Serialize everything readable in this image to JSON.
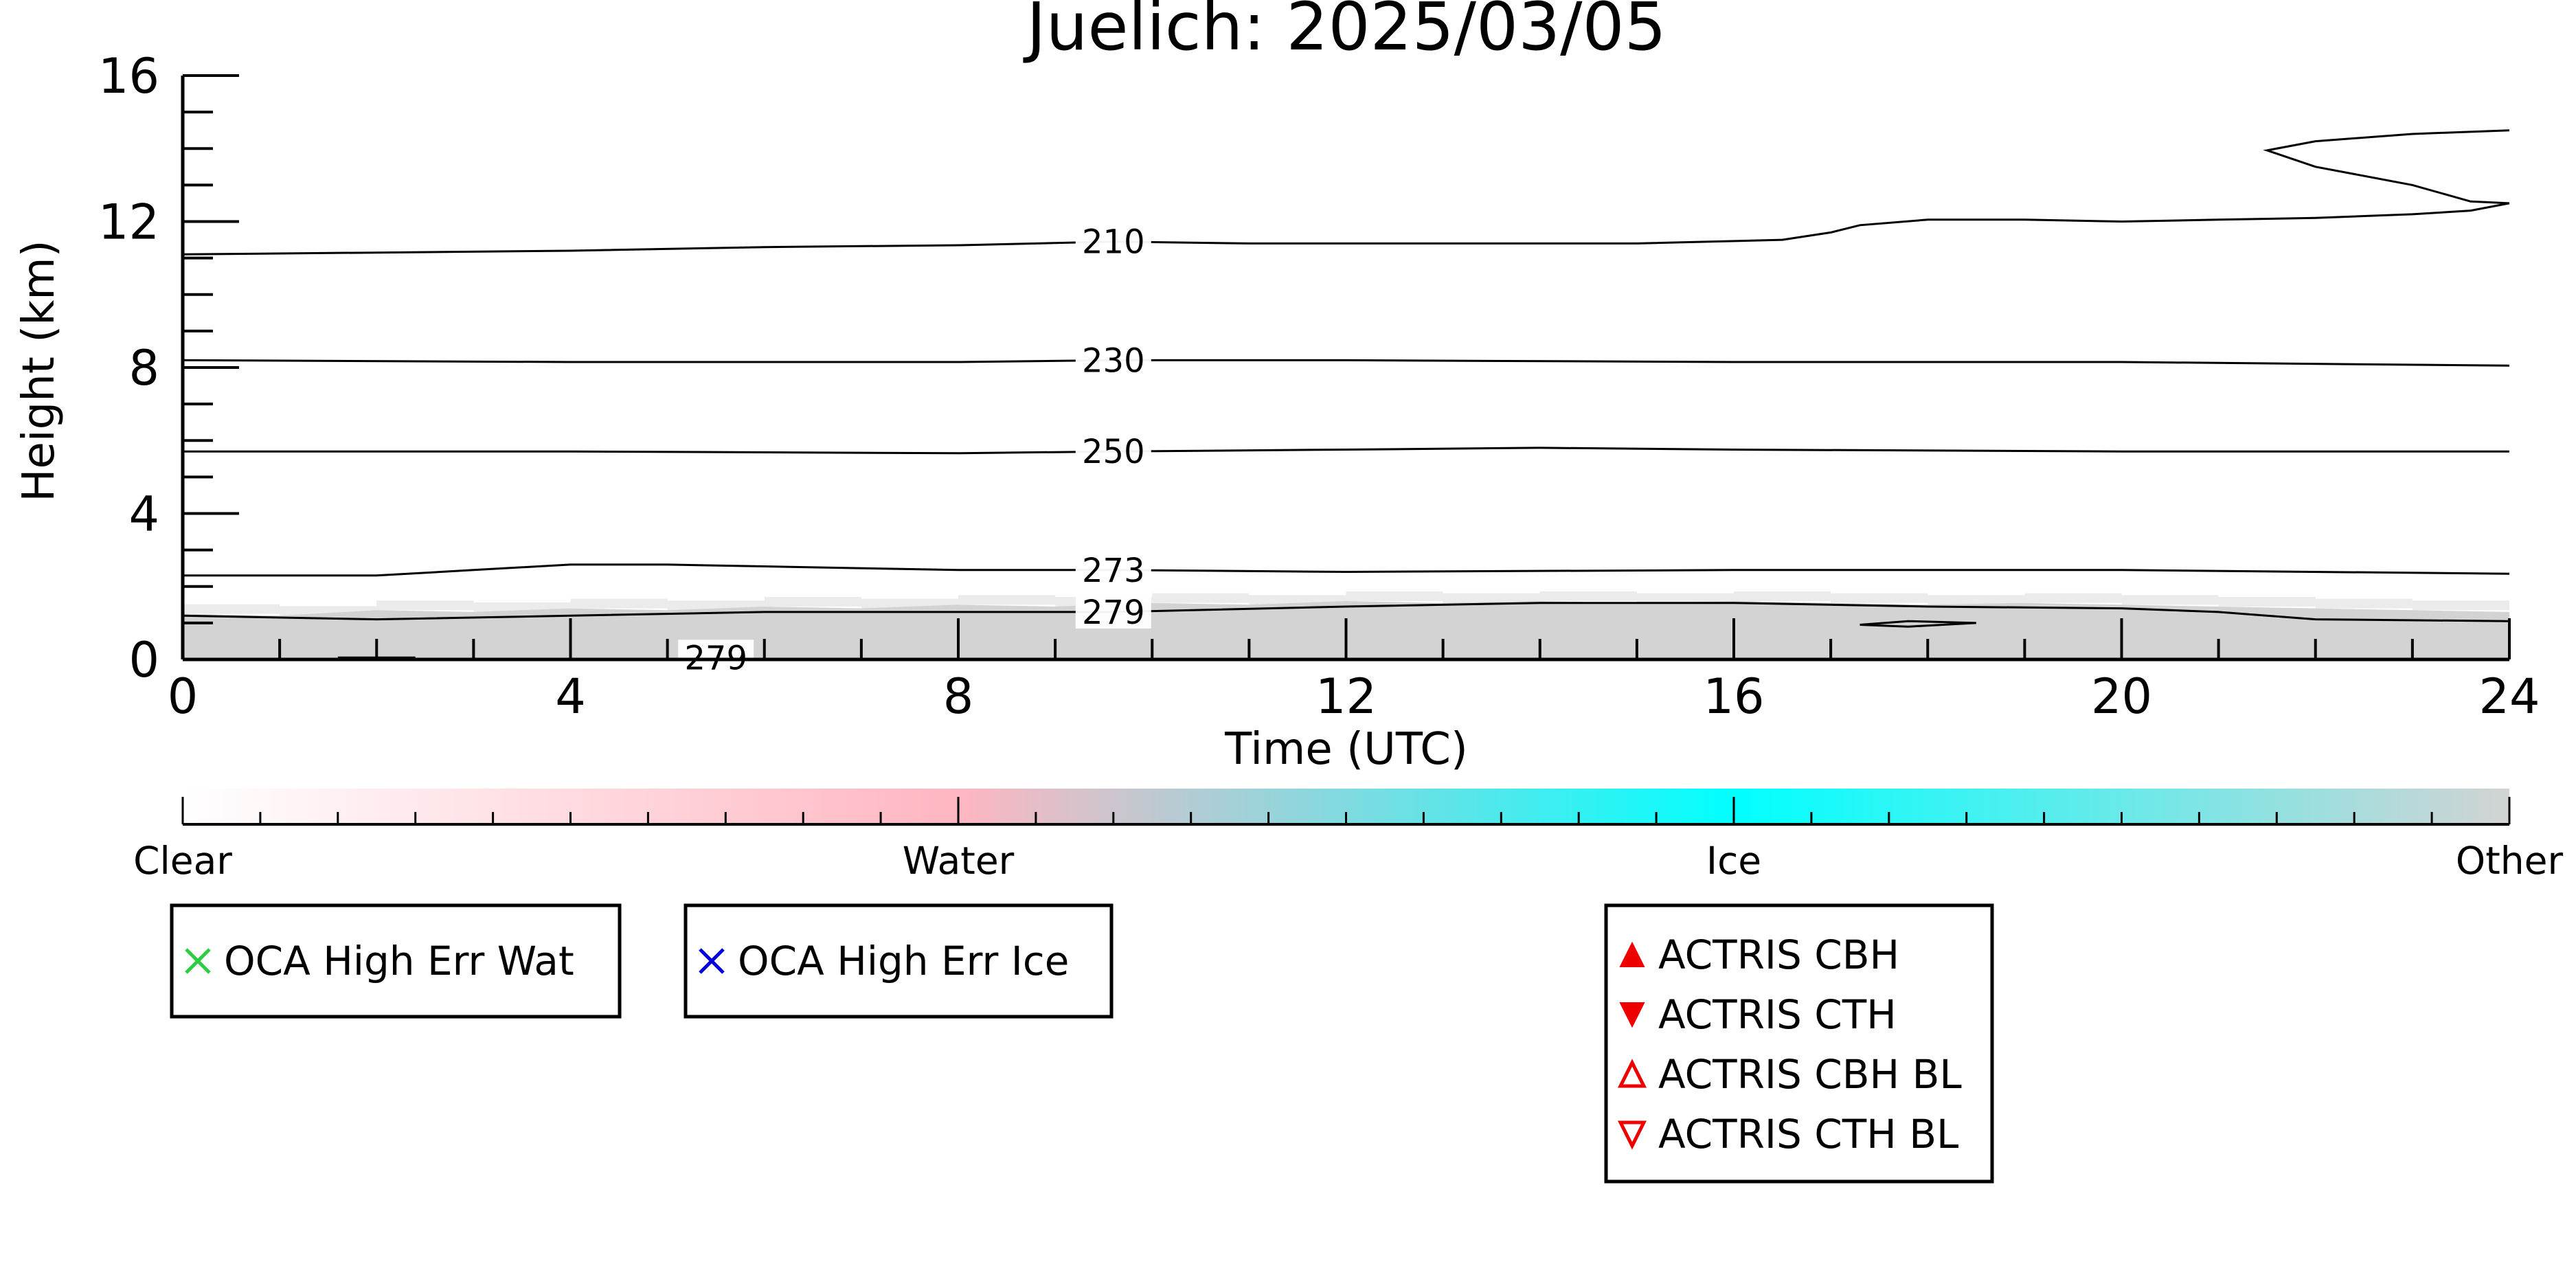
{
  "chart_data": {
    "type": "heatmap",
    "title": "Juelich: 2025/03/05",
    "xlabel": "Time (UTC)",
    "ylabel": "Height (km)",
    "xlim": [
      0,
      24
    ],
    "ylim": [
      0,
      16
    ],
    "x_ticks": [
      0,
      4,
      8,
      12,
      16,
      20,
      24
    ],
    "y_ticks": [
      0,
      4,
      8,
      12,
      16
    ],
    "cloud_layer": {
      "category": "Other",
      "color": "#d3d3d3",
      "top": [
        [
          0,
          1.25
        ],
        [
          1,
          1.2
        ],
        [
          2,
          1.35
        ],
        [
          3,
          1.3
        ],
        [
          4,
          1.4
        ],
        [
          5,
          1.35
        ],
        [
          6,
          1.45
        ],
        [
          7,
          1.4
        ],
        [
          8,
          1.5
        ],
        [
          9,
          1.45
        ],
        [
          10,
          1.55
        ],
        [
          11,
          1.5
        ],
        [
          12,
          1.6
        ],
        [
          13,
          1.55
        ],
        [
          14,
          1.6
        ],
        [
          15,
          1.55
        ],
        [
          16,
          1.6
        ],
        [
          17,
          1.55
        ],
        [
          18,
          1.5
        ],
        [
          19,
          1.55
        ],
        [
          20,
          1.5
        ],
        [
          21,
          1.45
        ],
        [
          22,
          1.4
        ],
        [
          23,
          1.35
        ],
        [
          24,
          1.3
        ]
      ]
    },
    "contours": [
      {
        "label": "210",
        "label_x": 9.6,
        "points": [
          [
            0,
            11.1
          ],
          [
            2,
            11.15
          ],
          [
            4,
            11.2
          ],
          [
            6,
            11.3
          ],
          [
            8,
            11.35
          ],
          [
            9.6,
            11.45
          ],
          [
            11,
            11.4
          ],
          [
            13,
            11.4
          ],
          [
            15,
            11.4
          ],
          [
            16.5,
            11.5
          ],
          [
            17,
            11.7
          ],
          [
            17.3,
            11.9
          ],
          [
            18,
            12.05
          ],
          [
            19,
            12.05
          ],
          [
            20,
            12.0
          ],
          [
            21,
            12.05
          ],
          [
            22,
            12.1
          ],
          [
            23,
            12.2
          ],
          [
            23.6,
            12.3
          ],
          [
            24,
            12.5
          ]
        ]
      },
      {
        "label": "210",
        "label_x": null,
        "points": [
          [
            24,
            14.5
          ],
          [
            23,
            14.4
          ],
          [
            22,
            14.2
          ],
          [
            21.5,
            13.95
          ],
          [
            22,
            13.5
          ],
          [
            23,
            13.0
          ],
          [
            23.6,
            12.55
          ],
          [
            24,
            12.5
          ]
        ]
      },
      {
        "label": "230",
        "label_x": 9.6,
        "points": [
          [
            0,
            8.2
          ],
          [
            4,
            8.15
          ],
          [
            8,
            8.15
          ],
          [
            9.6,
            8.2
          ],
          [
            12,
            8.2
          ],
          [
            16,
            8.15
          ],
          [
            20,
            8.15
          ],
          [
            24,
            8.05
          ]
        ]
      },
      {
        "label": "250",
        "label_x": 9.6,
        "points": [
          [
            0,
            5.7
          ],
          [
            4,
            5.7
          ],
          [
            8,
            5.65
          ],
          [
            9.6,
            5.7
          ],
          [
            12,
            5.75
          ],
          [
            14,
            5.8
          ],
          [
            16,
            5.75
          ],
          [
            20,
            5.7
          ],
          [
            24,
            5.7
          ]
        ]
      },
      {
        "label": "273",
        "label_x": 9.6,
        "points": [
          [
            0,
            2.3
          ],
          [
            2,
            2.3
          ],
          [
            3,
            2.45
          ],
          [
            4,
            2.6
          ],
          [
            5,
            2.6
          ],
          [
            6,
            2.55
          ],
          [
            8,
            2.45
          ],
          [
            9.6,
            2.45
          ],
          [
            12,
            2.4
          ],
          [
            16,
            2.45
          ],
          [
            20,
            2.45
          ],
          [
            24,
            2.35
          ]
        ]
      },
      {
        "label": "279",
        "label_x": 9.6,
        "points": [
          [
            0,
            1.2
          ],
          [
            2,
            1.1
          ],
          [
            4,
            1.2
          ],
          [
            6,
            1.3
          ],
          [
            8,
            1.3
          ],
          [
            9.6,
            1.3
          ],
          [
            12,
            1.45
          ],
          [
            14,
            1.55
          ],
          [
            16,
            1.55
          ],
          [
            18,
            1.45
          ],
          [
            20,
            1.4
          ],
          [
            21,
            1.3
          ],
          [
            22,
            1.1
          ],
          [
            24,
            1.05
          ]
        ]
      },
      {
        "label": "279",
        "label_x": null,
        "points": [
          [
            17.3,
            0.95
          ],
          [
            17.8,
            1.05
          ],
          [
            18.5,
            1.0
          ],
          [
            17.8,
            0.9
          ],
          [
            17.3,
            0.95
          ]
        ]
      },
      {
        "label": "279",
        "label_x": 5.5,
        "points": [
          [
            1.6,
            0.05
          ],
          [
            2.4,
            0.05
          ]
        ]
      }
    ],
    "colorbar": {
      "categories": [
        "Clear",
        "Water",
        "Ice",
        "Other"
      ],
      "colors": [
        "#ffffff",
        "#ffb6c1",
        "#00ffff",
        "#d3d3d3"
      ]
    },
    "legends": [
      {
        "entries": [
          {
            "label": "OCA High Err Wat",
            "marker": "x",
            "color": "#2ecc40"
          }
        ]
      },
      {
        "entries": [
          {
            "label": "OCA High Err Ice",
            "marker": "x",
            "color": "#0000dd"
          }
        ]
      },
      {
        "entries": [
          {
            "label": "ACTRIS CBH",
            "marker": "triangle-up-filled",
            "color": "#ee0000"
          },
          {
            "label": "ACTRIS CTH",
            "marker": "triangle-down-filled",
            "color": "#ee0000"
          },
          {
            "label": "ACTRIS CBH BL",
            "marker": "triangle-up-open",
            "color": "#ee0000"
          },
          {
            "label": "ACTRIS CTH BL",
            "marker": "triangle-down-open",
            "color": "#ee0000"
          }
        ]
      }
    ]
  }
}
